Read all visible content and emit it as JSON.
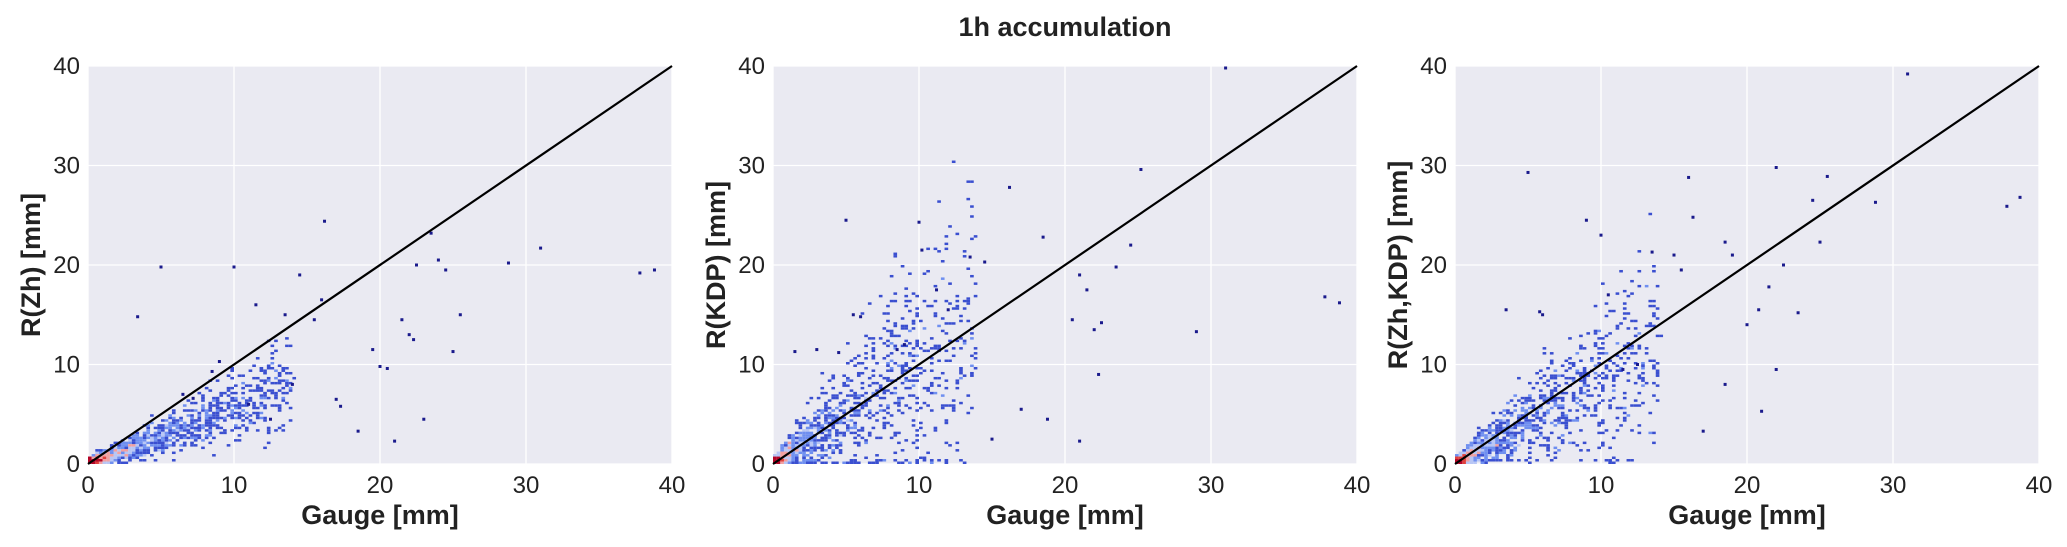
{
  "figure": {
    "title": "1h accumulation"
  },
  "style": {
    "panel_background": "#eaeaf2",
    "grid_color": "#ffffff",
    "one_to_one_line_color": "#000000",
    "density_colors_low_to_high": [
      "#1a1a8c",
      "#3a4fd0",
      "#6f8ff0",
      "#b8c6f5",
      "#f2a0a0",
      "#e0403c",
      "#b40426"
    ]
  },
  "chart_data": [
    {
      "type": "heatmap",
      "subtype": "2d-density-scatter",
      "xlabel": "Gauge [mm]",
      "ylabel": "R(Zh) [mm]",
      "xlim": [
        0,
        40
      ],
      "ylim": [
        0,
        40
      ],
      "xticks": [
        "0",
        "10",
        "20",
        "30",
        "40"
      ],
      "yticks": [
        "0",
        "10",
        "20",
        "30",
        "40"
      ],
      "grid": true,
      "reference_line": {
        "x": [
          0,
          40
        ],
        "y": [
          0,
          40
        ]
      },
      "outliers": [
        [
          3.4,
          14.8
        ],
        [
          5,
          19.8
        ],
        [
          10,
          19.8
        ],
        [
          11.5,
          16
        ],
        [
          13.5,
          15
        ],
        [
          14.5,
          19
        ],
        [
          15.5,
          14.5
        ],
        [
          16,
          16.5
        ],
        [
          16.2,
          24.4
        ],
        [
          19.5,
          11.5
        ],
        [
          20,
          9.8
        ],
        [
          20.5,
          9.6
        ],
        [
          21.5,
          14.5
        ],
        [
          22,
          13
        ],
        [
          22.3,
          12.5
        ],
        [
          22.5,
          20
        ],
        [
          23,
          4.5
        ],
        [
          23.5,
          23.2
        ],
        [
          24,
          20.5
        ],
        [
          24.5,
          19.5
        ],
        [
          25,
          11.3
        ],
        [
          25.5,
          15
        ],
        [
          28.8,
          20.2
        ],
        [
          31,
          21.7
        ],
        [
          37.8,
          19.2
        ],
        [
          38.8,
          19.5
        ],
        [
          17,
          6.5
        ],
        [
          17.3,
          5.8
        ],
        [
          18.5,
          3.3
        ],
        [
          21,
          2.3
        ],
        [
          14,
          8
        ],
        [
          9,
          10.3
        ],
        [
          8.5,
          9.3
        ],
        [
          12.5,
          4.5
        ],
        [
          11,
          6
        ],
        [
          7.2,
          6.6
        ],
        [
          6.5,
          7
        ]
      ],
      "cluster": {
        "mean_ratio": 0.55,
        "spread": 0.3,
        "x_extent": 14
      }
    },
    {
      "type": "heatmap",
      "subtype": "2d-density-scatter",
      "xlabel": "Gauge [mm]",
      "ylabel": "R(KDP) [mm]",
      "xlim": [
        0,
        40
      ],
      "ylim": [
        0,
        40
      ],
      "xticks": [
        "0",
        "10",
        "20",
        "30",
        "40"
      ],
      "yticks": [
        "0",
        "10",
        "20",
        "30",
        "40"
      ],
      "grid": true,
      "reference_line": {
        "x": [
          0,
          40
        ],
        "y": [
          0,
          40
        ]
      },
      "outliers": [
        [
          5,
          24.5
        ],
        [
          10,
          24.3
        ],
        [
          10.2,
          21.5
        ],
        [
          11.2,
          17.5
        ],
        [
          12,
          15.5
        ],
        [
          13.5,
          20.8
        ],
        [
          14.5,
          20.3
        ],
        [
          16.2,
          27.8
        ],
        [
          18.5,
          22.8
        ],
        [
          20.5,
          14.5
        ],
        [
          21,
          19
        ],
        [
          21.5,
          17.5
        ],
        [
          22,
          13.5
        ],
        [
          22.5,
          14.2
        ],
        [
          23.5,
          19.8
        ],
        [
          24.5,
          22
        ],
        [
          25.2,
          29.6
        ],
        [
          29,
          13.3
        ],
        [
          31,
          39.8
        ],
        [
          37.8,
          16.8
        ],
        [
          38.8,
          16.2
        ],
        [
          15,
          2.5
        ],
        [
          17,
          5.5
        ],
        [
          18.8,
          4.5
        ],
        [
          21,
          2.3
        ],
        [
          22.3,
          9
        ],
        [
          9,
          12
        ],
        [
          8.5,
          11.5
        ],
        [
          5.5,
          15
        ],
        [
          6,
          14.8
        ],
        [
          3,
          11.5
        ],
        [
          1.5,
          11.3
        ],
        [
          4.5,
          11.2
        ]
      ],
      "cluster": {
        "mean_ratio": 1.0,
        "spread": 0.55,
        "x_extent": 14
      }
    },
    {
      "type": "heatmap",
      "subtype": "2d-density-scatter",
      "xlabel": "Gauge [mm]",
      "ylabel": "R(Zh,KDP) [mm]",
      "xlim": [
        0,
        40
      ],
      "ylim": [
        0,
        40
      ],
      "xticks": [
        "0",
        "10",
        "20",
        "30",
        "40"
      ],
      "yticks": [
        "0",
        "10",
        "20",
        "30",
        "40"
      ],
      "grid": true,
      "reference_line": {
        "x": [
          0,
          40
        ],
        "y": [
          0,
          40
        ]
      },
      "outliers": [
        [
          3.5,
          15.5
        ],
        [
          5,
          29.3
        ],
        [
          9,
          24.5
        ],
        [
          10,
          23
        ],
        [
          10.5,
          17
        ],
        [
          13.5,
          21.3
        ],
        [
          15,
          21
        ],
        [
          15.5,
          19.5
        ],
        [
          16,
          28.8
        ],
        [
          16.3,
          24.8
        ],
        [
          18.5,
          22.3
        ],
        [
          19,
          21
        ],
        [
          20,
          14
        ],
        [
          20.8,
          15.5
        ],
        [
          21.5,
          17.8
        ],
        [
          22,
          29.8
        ],
        [
          22.5,
          20
        ],
        [
          23.5,
          15.2
        ],
        [
          24.5,
          26.5
        ],
        [
          25,
          22.3
        ],
        [
          25.5,
          28.9
        ],
        [
          28.8,
          26.3
        ],
        [
          31,
          39.2
        ],
        [
          37.8,
          25.9
        ],
        [
          38.7,
          26.8
        ],
        [
          17,
          3.3
        ],
        [
          18.5,
          8
        ],
        [
          21,
          5.3
        ],
        [
          22,
          9.5
        ],
        [
          12.5,
          10
        ],
        [
          11.5,
          9.5
        ],
        [
          6,
          15
        ],
        [
          5.8,
          15.3
        ]
      ],
      "cluster": {
        "mean_ratio": 0.85,
        "spread": 0.45,
        "x_extent": 14
      }
    }
  ]
}
